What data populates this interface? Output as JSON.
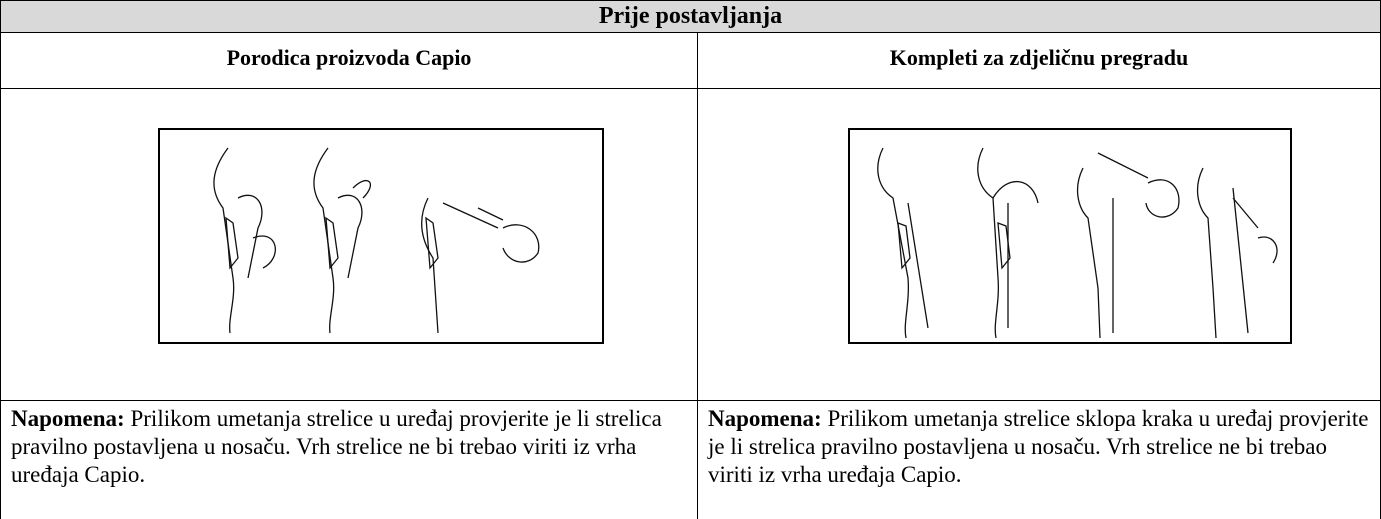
{
  "header": {
    "title": "Prije postavljanja"
  },
  "columns": [
    {
      "heading": "Porodica proizvoda Capio",
      "note_label": "Napomena:",
      "note_text": "Prilikom umetanja strelice u uređaj provjerite je li strelica pravilno postavljena u nosaču. Vrh strelice ne bi trebao viriti iz vrha uređaja Capio."
    },
    {
      "heading": "Kompleti za zdjeličnu pregradu",
      "note_label": "Napomena:",
      "note_text": "Prilikom umetanja strelice sklopa kraka u uređaj provjerite je li strelica pravilno postavljena u nosaču. Vrh strelice ne bi trebao viriti iz vrha uređaja Capio."
    }
  ]
}
